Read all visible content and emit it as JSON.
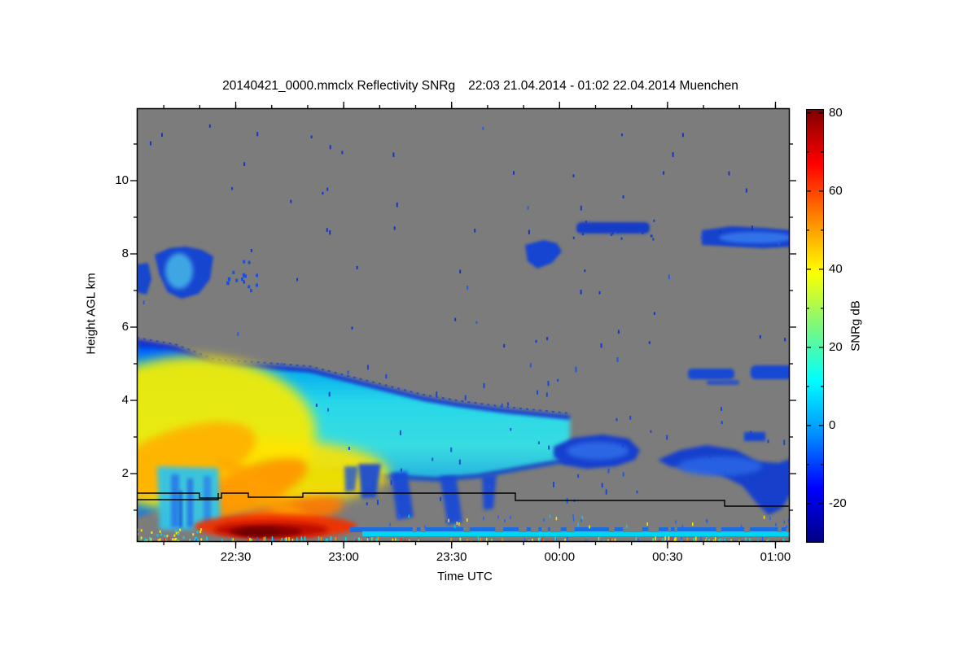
{
  "page": {
    "background": "#ffffff"
  },
  "title": {
    "left": "20140421_0000.mmclx Reflectivity SNRg",
    "right": "22:03 21.04.2014 - 01:02 22.04.2014 Muenchen",
    "full": "20140421_0000.mmclx Reflectivity SNRg   22:03 21.04.2014 - 01:02 22.04.2014 Muenchen"
  },
  "axes": {
    "x": {
      "label": "Time UTC",
      "ticks": [
        "22:30",
        "23:00",
        "23:30",
        "00:00",
        "00:30",
        "01:00"
      ],
      "minor_interval_min": 10
    },
    "y": {
      "label": "Height AGL km",
      "ticks": [
        "10",
        "8",
        "6",
        "4",
        "2"
      ],
      "tick_values": [
        10,
        8,
        6,
        4,
        2
      ],
      "minor_interval_km": 1
    }
  },
  "colorbar": {
    "label": "SNRg dB",
    "ticks": [
      "80",
      "60",
      "40",
      "20",
      "0",
      "-20"
    ],
    "tick_values": [
      80,
      60,
      40,
      20,
      0,
      -20
    ],
    "minor_interval_db": 10
  },
  "chart_data": {
    "type": "heatmap",
    "title": "20140421_0000.mmclx Reflectivity SNRg   22:03 21.04.2014 - 01:02 22.04.2014 Muenchen",
    "source_file": "20140421_0000.mmclx",
    "quantity": "Reflectivity SNRg",
    "station": "Muenchen",
    "time_start": "22:03 21.04.2014",
    "time_end": "01:02 22.04.2014",
    "xlabel": "Time UTC",
    "ylabel": "Height AGL km",
    "x_range": [
      "22:03",
      "01:05"
    ],
    "y_range_km": [
      0.15,
      12.0
    ],
    "value_label": "SNRg dB",
    "value_range_db": [
      -30,
      81
    ],
    "colormap": "jet",
    "no_signal_color": "#7c7c7c",
    "grid": false,
    "features": [
      {
        "name": "main precipitating cloud mass",
        "time": "22:03-23:40",
        "height_km": [
          0.15,
          5.6
        ],
        "desc": "cloud top descends from ~5.6 km to ~4 km; core 35-45 dB (yellow/orange) below 3 km on left, cyan 10-20 dB band 2-4 km extending right"
      },
      {
        "name": "intense surface rain band",
        "time": "22:25-23:10",
        "height_km": [
          0.15,
          0.9
        ],
        "desc": "60-80 dB dark red echo reaching the ground"
      },
      {
        "name": "downdraft/attenuation shaft",
        "time": "22:10-22:25",
        "height_km": [
          0.3,
          2.0
        ],
        "desc": "cyan-blue vertical shaft 0-10 dB inside the rain area"
      },
      {
        "name": "virga fall streaks",
        "time": "23:05-23:40",
        "height_km": [
          0.6,
          2.2
        ],
        "desc": "blue streaks -15 to 0 dB hanging below the cloud base"
      },
      {
        "name": "cirrus patches upper left",
        "time": "22:03-22:36",
        "height_km": [
          6.9,
          8.2
        ],
        "desc": "blue patches -20 to 5 dB with brighter cyan core"
      },
      {
        "name": "mid-level cloud band",
        "time": "23:35-00:25",
        "height_km": [
          2.0,
          3.2
        ],
        "desc": "elongated blue band -20 to -5 dB"
      },
      {
        "name": "descending cloud band right",
        "time": "00:25-01:02",
        "height_km": [
          0.9,
          3.0
        ],
        "desc": "blue band sloping down, hook reaching ~1 km near 00:55"
      },
      {
        "name": "cirrus streaks upper right",
        "time": "23:50-01:02",
        "height_km": [
          8.0,
          9.0
        ],
        "desc": "thin blue streaks around -20 to -10 dB"
      },
      {
        "name": "thin layers 4.5 km right",
        "time": "00:40-01:02",
        "height_km": [
          4.3,
          4.7
        ],
        "desc": "short blue streaks"
      },
      {
        "name": "melting-layer contour",
        "time": "22:03-01:05",
        "height_km": [
          1.0,
          1.5
        ],
        "desc": "stepped black line near 1.35 km, dropping toward 1.0 km after 00:45"
      },
      {
        "name": "near-surface echo line",
        "time": "22:03-01:05",
        "height_km": [
          0.25,
          0.35
        ],
        "desc": "continuous bright cyan stripe with colored speckles across whole period"
      }
    ]
  }
}
